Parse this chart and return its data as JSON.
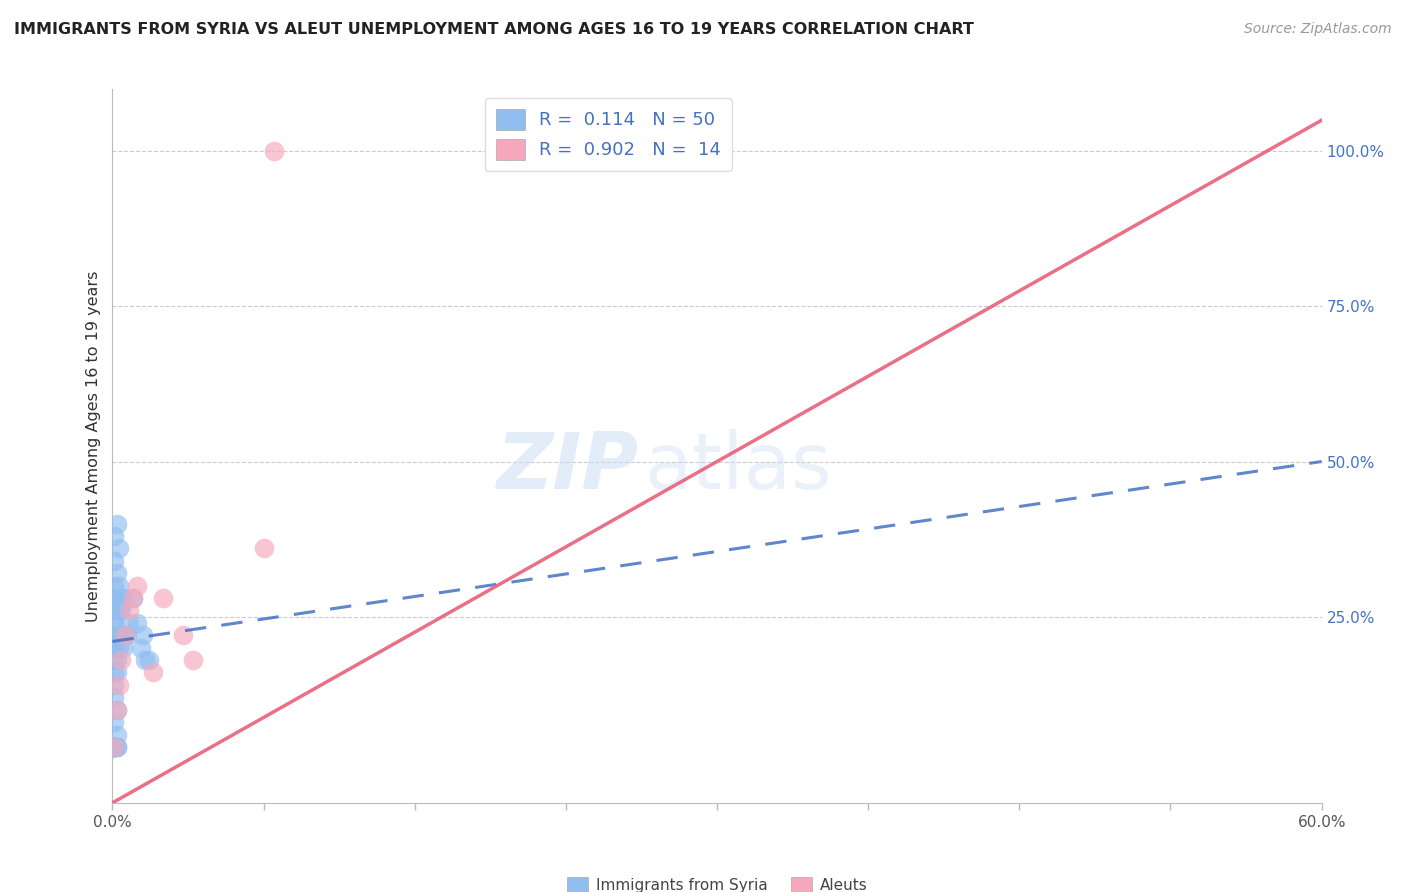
{
  "title": "IMMIGRANTS FROM SYRIA VS ALEUT UNEMPLOYMENT AMONG AGES 16 TO 19 YEARS CORRELATION CHART",
  "source": "Source: ZipAtlas.com",
  "ylabel": "Unemployment Among Ages 16 to 19 years",
  "xlim": [
    0.0,
    0.6
  ],
  "ylim": [
    -0.05,
    1.1
  ],
  "yticks_right": [
    0.25,
    0.5,
    0.75,
    1.0
  ],
  "ytick_right_labels": [
    "25.0%",
    "50.0%",
    "75.0%",
    "100.0%"
  ],
  "legend_R1": "0.114",
  "legend_N1": "50",
  "legend_R2": "0.902",
  "legend_N2": "14",
  "blue_color": "#90BEF0",
  "pink_color": "#F5A8BC",
  "trend_blue_color": "#4472C4",
  "trend_pink_color": "#E8607A",
  "watermark_zip": "ZIP",
  "watermark_atlas": "atlas",
  "grid_color": "#CCCCCC",
  "syria_x": [
    0.002,
    0.001,
    0.003,
    0.001,
    0.002,
    0.001,
    0.002,
    0.001,
    0.001,
    0.003,
    0.001,
    0.001,
    0.002,
    0.001,
    0.001,
    0.002,
    0.001,
    0.002,
    0.001,
    0.001,
    0.001,
    0.002,
    0.001,
    0.001,
    0.002,
    0.001,
    0.003,
    0.001,
    0.002,
    0.001,
    0.004,
    0.003,
    0.002,
    0.001,
    0.004,
    0.003,
    0.005,
    0.004,
    0.006,
    0.005,
    0.008,
    0.007,
    0.01,
    0.012,
    0.014,
    0.016,
    0.003,
    0.002,
    0.015,
    0.018
  ],
  "syria_y": [
    0.4,
    0.38,
    0.36,
    0.34,
    0.32,
    0.3,
    0.28,
    0.26,
    0.24,
    0.22,
    0.2,
    0.18,
    0.16,
    0.14,
    0.12,
    0.1,
    0.08,
    0.06,
    0.04,
    0.04,
    0.04,
    0.04,
    0.04,
    0.04,
    0.04,
    0.04,
    0.26,
    0.24,
    0.22,
    0.2,
    0.28,
    0.26,
    0.18,
    0.16,
    0.22,
    0.2,
    0.28,
    0.26,
    0.22,
    0.2,
    0.24,
    0.22,
    0.28,
    0.24,
    0.2,
    0.18,
    0.3,
    0.28,
    0.22,
    0.18
  ],
  "aleut_x": [
    0.001,
    0.002,
    0.003,
    0.004,
    0.006,
    0.008,
    0.01,
    0.012,
    0.02,
    0.025,
    0.035,
    0.04,
    0.08,
    0.075
  ],
  "aleut_y": [
    0.04,
    0.1,
    0.14,
    0.18,
    0.22,
    0.26,
    0.28,
    0.3,
    0.16,
    0.28,
    0.22,
    0.18,
    1.0,
    0.36
  ],
  "trend_blue_x0": 0.0,
  "trend_blue_y0": 0.21,
  "trend_blue_x1": 0.6,
  "trend_blue_y1": 0.5,
  "trend_pink_x0": 0.0,
  "trend_pink_y0": -0.05,
  "trend_pink_x1": 0.6,
  "trend_pink_y1": 1.05
}
